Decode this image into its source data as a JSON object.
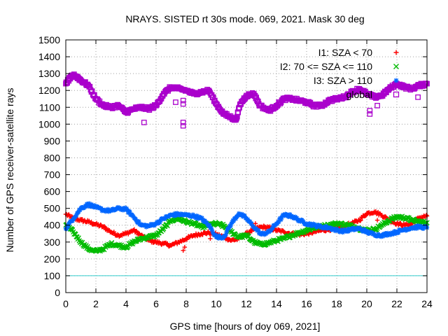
{
  "chart_data": {
    "type": "scatter",
    "title": "NRAYS. SISTED rt 30s mode. 069, 2021. Mask 30 deg",
    "xlabel": "GPS time [hours of doy 069, 2021]",
    "ylabel": "Number of GPS receiver-satellite rays",
    "xlim": [
      0,
      24
    ],
    "ylim": [
      0,
      1500
    ],
    "xticks": [
      0,
      2,
      4,
      6,
      8,
      10,
      12,
      14,
      16,
      18,
      20,
      22,
      24
    ],
    "yticks": [
      0,
      100,
      200,
      300,
      400,
      500,
      600,
      700,
      800,
      900,
      1000,
      1100,
      1200,
      1300,
      1400,
      1500
    ],
    "grid": true,
    "legend_position": "top-right",
    "threshold_line": {
      "y": 100,
      "color": "#33cccc"
    },
    "series": [
      {
        "name": "I1: SZA < 70",
        "marker": "+",
        "color": "#ff0000",
        "x": [
          0,
          0.5,
          1,
          1.5,
          2,
          2.5,
          3,
          3.5,
          4,
          4.5,
          5,
          5.5,
          6,
          6.5,
          7,
          7.5,
          8,
          8.5,
          9,
          9.5,
          10,
          10.5,
          11,
          11.5,
          12,
          12.5,
          13,
          13.5,
          14,
          14.5,
          15,
          15.5,
          16,
          16.5,
          17,
          17.5,
          18,
          18.5,
          19,
          19.5,
          20,
          20.5,
          21,
          21.5,
          22,
          22.5,
          23,
          23.5,
          24
        ],
        "values": [
          465,
          440,
          430,
          420,
          405,
          390,
          360,
          340,
          350,
          370,
          340,
          310,
          300,
          290,
          280,
          300,
          320,
          340,
          350,
          355,
          345,
          330,
          310,
          320,
          350,
          375,
          390,
          385,
          370,
          360,
          350,
          345,
          350,
          360,
          370,
          375,
          380,
          395,
          410,
          430,
          470,
          480,
          460,
          430,
          410,
          400,
          410,
          445,
          455
        ]
      },
      {
        "name": "I2: 70 <= SZA <= 110",
        "marker": "x",
        "color": "#00bb00",
        "x": [
          0,
          0.5,
          1,
          1.5,
          2,
          2.5,
          3,
          3.5,
          4,
          4.5,
          5,
          5.5,
          6,
          6.5,
          7,
          7.5,
          8,
          8.5,
          9,
          9.5,
          10,
          10.5,
          11,
          11.5,
          12,
          12.5,
          13,
          13.5,
          14,
          14.5,
          15,
          15.5,
          16,
          16.5,
          17,
          17.5,
          18,
          18.5,
          19,
          19.5,
          20,
          20.5,
          21,
          21.5,
          22,
          22.5,
          23,
          23.5,
          24
        ],
        "values": [
          400,
          360,
          300,
          260,
          245,
          260,
          290,
          280,
          270,
          300,
          320,
          330,
          340,
          380,
          430,
          440,
          420,
          410,
          390,
          400,
          410,
          395,
          360,
          330,
          340,
          300,
          285,
          295,
          310,
          320,
          340,
          355,
          370,
          385,
          395,
          400,
          410,
          405,
          395,
          380,
          370,
          375,
          400,
          430,
          450,
          445,
          430,
          420,
          415
        ]
      },
      {
        "name": "I3: SZA > 110",
        "marker": "*",
        "color": "#0066ff",
        "x": [
          0,
          0.5,
          1,
          1.5,
          2,
          2.5,
          3,
          3.5,
          4,
          4.5,
          5,
          5.5,
          6,
          6.5,
          7,
          7.5,
          8,
          8.5,
          9,
          9.5,
          10,
          10.5,
          11,
          11.5,
          12,
          12.5,
          13,
          13.5,
          14,
          14.5,
          15,
          15.5,
          16,
          16.5,
          17,
          17.5,
          18,
          18.5,
          19,
          19.5,
          20,
          20.5,
          21,
          21.5,
          22,
          22.5,
          23,
          23.5,
          24
        ],
        "values": [
          380,
          440,
          500,
          525,
          505,
          490,
          485,
          500,
          495,
          450,
          400,
          395,
          410,
          440,
          460,
          465,
          460,
          455,
          440,
          400,
          330,
          330,
          410,
          470,
          440,
          390,
          345,
          360,
          410,
          460,
          455,
          430,
          410,
          400,
          390,
          385,
          370,
          365,
          375,
          380,
          360,
          345,
          340,
          350,
          360,
          375,
          385,
          390,
          385
        ]
      },
      {
        "name": "global",
        "marker": "square",
        "color": "#aa00cc",
        "x": [
          0,
          0.25,
          0.5,
          0.75,
          1,
          1.5,
          2,
          2.5,
          3,
          3.5,
          4,
          4.5,
          5,
          5.5,
          6,
          6.5,
          7,
          7.5,
          8,
          8.5,
          9,
          9.5,
          10,
          10.5,
          11,
          11.3,
          11.6,
          12,
          12.5,
          12.9,
          13.5,
          14,
          14.5,
          15,
          15.5,
          16,
          16.5,
          17,
          17.5,
          18,
          18.5,
          19,
          19.5,
          20,
          20.5,
          21,
          21.5,
          22,
          22.5,
          23,
          23.5,
          24
        ],
        "values": [
          1240,
          1270,
          1290,
          1280,
          1260,
          1230,
          1150,
          1110,
          1100,
          1110,
          1070,
          1090,
          1100,
          1090,
          1110,
          1180,
          1220,
          1210,
          1200,
          1180,
          1190,
          1200,
          1120,
          1060,
          1040,
          1025,
          1120,
          1170,
          1180,
          1110,
          1080,
          1110,
          1150,
          1150,
          1140,
          1130,
          1110,
          1110,
          1140,
          1150,
          1160,
          1190,
          1210,
          1180,
          1160,
          1170,
          1210,
          1240,
          1220,
          1210,
          1230,
          1240
        ]
      }
    ],
    "outliers": {
      "global": {
        "x": [
          5.2,
          7.3,
          7.8,
          7.8,
          7.8,
          7.8,
          20.2,
          20.2,
          20.7,
          23.4
        ],
        "values": [
          1010,
          1130,
          1140,
          1120,
          1010,
          990,
          1080,
          1060,
          1110,
          1160
        ]
      },
      "I1: SZA < 70": {
        "x": [
          7.8,
          7.9,
          9.6,
          12.6,
          20.7
        ],
        "values": [
          250,
          270,
          320,
          410,
          430
        ]
      }
    }
  }
}
